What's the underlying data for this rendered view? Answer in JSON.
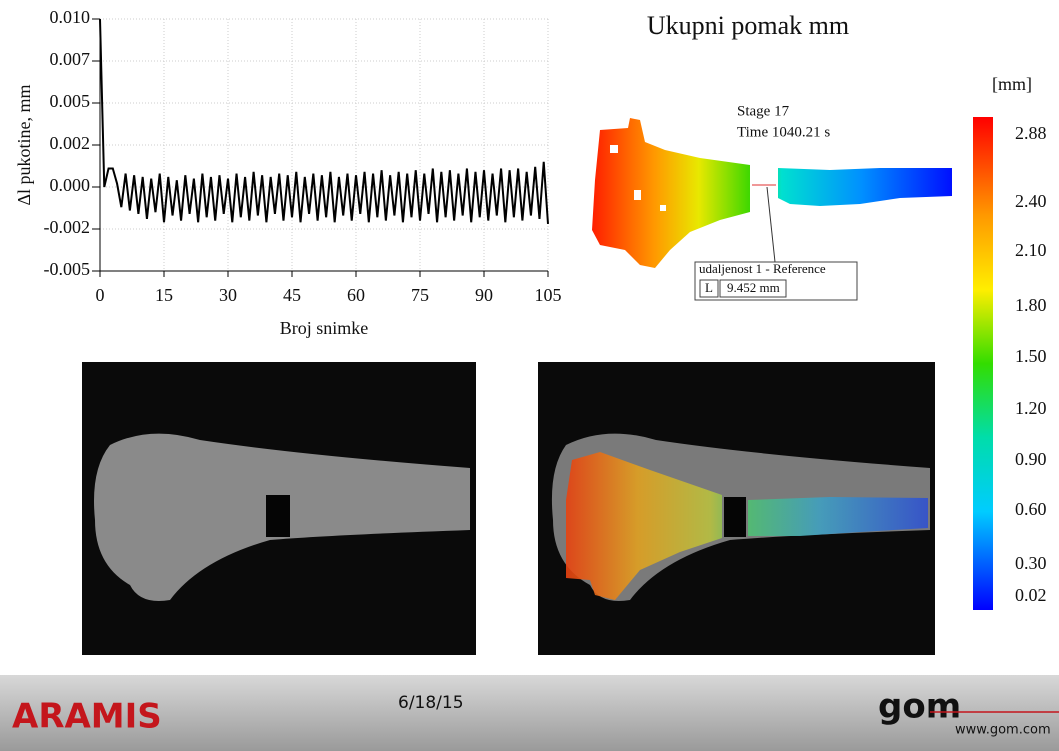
{
  "chart_data": {
    "type": "line",
    "y_label": "Δl pukotine, mm",
    "x_label": "Broj snimke",
    "x": [
      0,
      1,
      2,
      3,
      4,
      5,
      6,
      7,
      8,
      9,
      10,
      11,
      12,
      13,
      14,
      15,
      16,
      17,
      18,
      19,
      20,
      21,
      22,
      23,
      24,
      25,
      26,
      27,
      28,
      29,
      30,
      31,
      32,
      33,
      34,
      35,
      36,
      37,
      38,
      39,
      40,
      41,
      42,
      43,
      44,
      45,
      46,
      47,
      48,
      49,
      50,
      51,
      52,
      53,
      54,
      55,
      56,
      57,
      58,
      59,
      60,
      61,
      62,
      63,
      64,
      65,
      66,
      67,
      68,
      69,
      70,
      71,
      72,
      73,
      74,
      75,
      76,
      77,
      78,
      79,
      80,
      81,
      82,
      83,
      84,
      85,
      86,
      87,
      88,
      89,
      90,
      91,
      92,
      93,
      94,
      95,
      96,
      97,
      98,
      99,
      100,
      101,
      102,
      103,
      104,
      105
    ],
    "values": [
      0.01,
      0.0,
      0.0011,
      0.0011,
      0.0002,
      -0.0012,
      0.0008,
      -0.0014,
      0.0007,
      -0.0016,
      0.0006,
      -0.0019,
      0.0005,
      -0.0015,
      0.0008,
      -0.0021,
      0.0006,
      -0.0017,
      0.0004,
      -0.002,
      0.0007,
      -0.0016,
      0.0005,
      -0.0021,
      0.0008,
      -0.0018,
      0.0006,
      -0.002,
      0.0007,
      -0.0016,
      0.0005,
      -0.0021,
      0.0008,
      -0.0018,
      0.0006,
      -0.002,
      0.0009,
      -0.0017,
      0.0007,
      -0.0021,
      0.0006,
      -0.0016,
      0.0008,
      -0.002,
      0.0007,
      -0.0018,
      0.0009,
      -0.0021,
      0.0006,
      -0.0016,
      0.0008,
      -0.002,
      0.0007,
      -0.0018,
      0.0009,
      -0.0021,
      0.0006,
      -0.0017,
      0.0008,
      -0.002,
      0.0007,
      -0.0016,
      0.0009,
      -0.0021,
      0.0008,
      -0.0018,
      0.001,
      -0.002,
      0.0007,
      -0.0017,
      0.0009,
      -0.0021,
      0.0008,
      -0.0018,
      0.001,
      -0.002,
      0.0008,
      -0.0016,
      0.0011,
      -0.0021,
      0.0009,
      -0.0018,
      0.001,
      -0.002,
      0.0008,
      -0.0017,
      0.0011,
      -0.0021,
      0.0009,
      -0.0018,
      0.001,
      -0.002,
      0.0008,
      -0.0017,
      0.0011,
      -0.0021,
      0.001,
      -0.0018,
      0.0011,
      -0.002,
      0.0009,
      -0.0017,
      0.0012,
      -0.0019,
      0.0015,
      -0.0022
    ],
    "color": "#000000",
    "xlim": [
      0,
      105
    ],
    "xticks": [
      0,
      15,
      30,
      45,
      60,
      75,
      90,
      105
    ],
    "ylim": [
      -0.005,
      0.01
    ],
    "yticks": [
      {
        "value": -0.005,
        "label": "-0.005"
      },
      {
        "value": -0.0025,
        "label": "-0.002"
      },
      {
        "value": 0,
        "label": "0.000"
      },
      {
        "value": 0.0025,
        "label": "0.002"
      },
      {
        "value": 0.005,
        "label": "0.005"
      },
      {
        "value": 0.0075,
        "label": "0.007"
      },
      {
        "value": 0.01,
        "label": "0.010"
      }
    ],
    "grid": true
  },
  "field": {
    "title": "Ukupni pomak  mm",
    "stage": "Stage 17",
    "time": "Time  1040.21 s",
    "measure": {
      "name": "udaljenost 1 - Reference",
      "symbol": "L",
      "value": "9.452 mm"
    }
  },
  "colorbar": {
    "unit": "[mm]",
    "labels": [
      "2.88",
      "2.40",
      "2.10",
      "1.80",
      "1.50",
      "1.20",
      "0.90",
      "0.60",
      "0.30",
      "0.02"
    ]
  },
  "footer": {
    "product": "ARAMIS",
    "date": "6/18/15",
    "logo": "gom",
    "url": "www.gom.com"
  }
}
